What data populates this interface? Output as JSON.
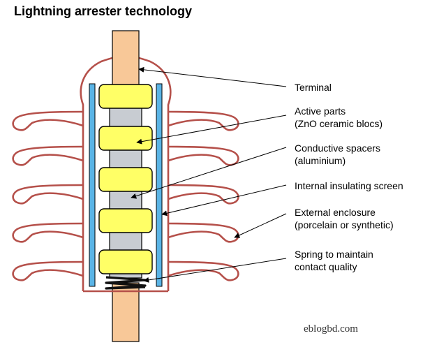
{
  "title": "Lightning arrester technology",
  "labels": {
    "terminal": "Terminal",
    "active_1": "Active parts",
    "active_2": "(ZnO ceramic blocs)",
    "spacers_1": "Conductive spacers",
    "spacers_2": "(aluminium)",
    "screen": "Internal insulating screen",
    "enclosure_1": "External enclosure",
    "enclosure_2": "(porcelain or synthetic)",
    "spring_1": "Spring to maintain",
    "spring_2": "contact quality"
  },
  "watermark": "eblogbd.com",
  "colors": {
    "enclosure": "#b5504a",
    "terminal": "#f8c898",
    "active_parts": "#ffff66",
    "spacers": "#c8ccd2",
    "screen": "#5ab4e6",
    "spring": "#111111"
  }
}
